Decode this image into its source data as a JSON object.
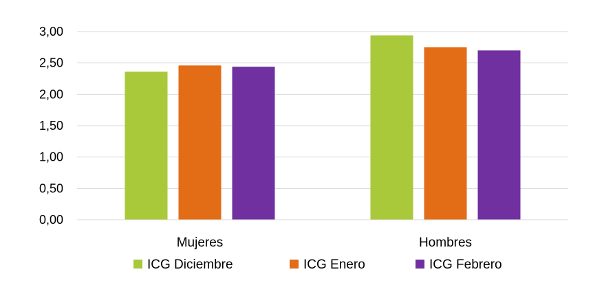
{
  "chart_data": {
    "type": "bar",
    "categories": [
      "Mujeres",
      "Hombres"
    ],
    "series": [
      {
        "name": "ICG Diciembre",
        "color": "#a9c93a",
        "values": [
          2.36,
          2.94
        ]
      },
      {
        "name": "ICG Enero",
        "color": "#e36c17",
        "values": [
          2.46,
          2.75
        ]
      },
      {
        "name": "ICG Febrero",
        "color": "#7030a0",
        "values": [
          2.44,
          2.7
        ]
      }
    ],
    "y_ticks": [
      "0,00",
      "0,50",
      "1,00",
      "1,50",
      "2,00",
      "2,50",
      "3,00"
    ],
    "ylim": [
      0,
      3
    ],
    "grid": true,
    "legend_position": "bottom",
    "title": "",
    "xlabel": "",
    "ylabel": ""
  }
}
